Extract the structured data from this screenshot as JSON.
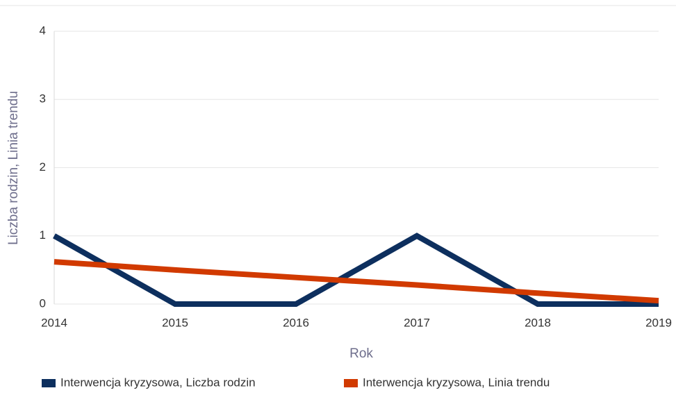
{
  "chart_data": {
    "type": "line",
    "x": [
      2014,
      2015,
      2016,
      2017,
      2018,
      2019
    ],
    "series": [
      {
        "name": "Interwencja kryzysowa, Liczba rodzin",
        "color": "#0d2f5e",
        "values": [
          1,
          0,
          0,
          1,
          0,
          0
        ]
      },
      {
        "name": "Interwencja kryzysowa, Linia trendu",
        "color": "#d13a00",
        "values": [
          0.62,
          0.5,
          0.39,
          0.28,
          0.16,
          0.05
        ]
      }
    ],
    "xlabel": "Rok",
    "ylabel": "Liczba rodzin, Linia trendu",
    "xlim": [
      2014,
      2019
    ],
    "xticks": [
      2014,
      2015,
      2016,
      2017,
      2018,
      2019
    ],
    "ylim": [
      0,
      4
    ],
    "yticks": [
      0,
      1,
      2,
      3,
      4
    ],
    "grid": true,
    "legend": "bottom"
  }
}
